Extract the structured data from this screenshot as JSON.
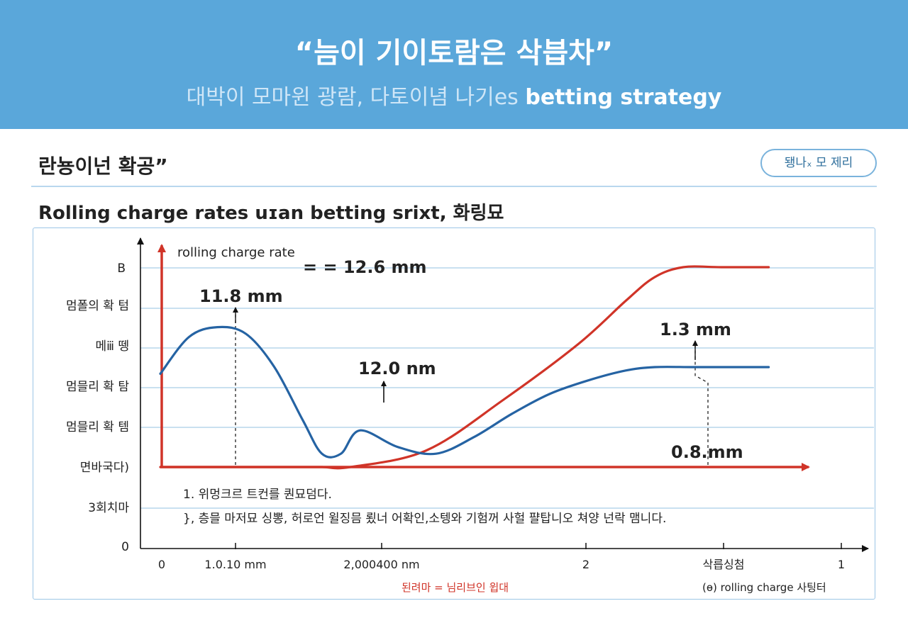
{
  "banner": {
    "title": "“늠이 기이토람은 삭븝차”",
    "subtitle_light": "대박이 모마윈 광람, 다토이념 나기es ",
    "subtitle_bold": "betting strategy"
  },
  "section": {
    "title": "란뇽이넌 확공”",
    "pill_label": "됑나ₓ 모 제리"
  },
  "chart_title": "Rolling charge rates uɪan betting srixt, 화링묘",
  "colors": {
    "banner": "#5aa7da",
    "red_series": "#d03428",
    "blue_series": "#2563a3",
    "grid": "#a9cde8"
  },
  "chart_data": {
    "type": "line",
    "ylabel": "rolling charge rate",
    "y_tick_labels": [
      "B",
      "멈폴의 확 텀",
      "메ⅲ 뗑",
      "멈믈리 확 탐",
      "멈믈리 확 템",
      "면바국다)",
      "3회치마",
      "0"
    ],
    "x_tick_labels": [
      "0",
      "1.0.10 mm",
      "2,000400 nm",
      "2",
      "삭릅싱첨",
      "1"
    ],
    "series": [
      {
        "color": "red",
        "x": [
          0,
          0.68,
          0.85,
          1.0,
          1.4,
          1.8,
          2.2,
          2.45,
          2.6,
          2.75,
          2.95,
          3.2
        ],
        "y": [
          1.0,
          1.0,
          1.0,
          1.0,
          1.25,
          2.0,
          2.85,
          3.5,
          3.85,
          4.0,
          4.0,
          4.0
        ]
      },
      {
        "color": "blue",
        "x": [
          0,
          0.15,
          0.3,
          0.45,
          0.6,
          0.75,
          0.85,
          0.95,
          1.05,
          1.25,
          1.45,
          1.65,
          1.85,
          2.05,
          2.25,
          2.45,
          2.6,
          2.8,
          3.0,
          3.2
        ],
        "y": [
          2.4,
          2.95,
          3.1,
          3.0,
          2.5,
          1.7,
          1.2,
          1.2,
          1.55,
          1.3,
          1.2,
          1.45,
          1.8,
          2.1,
          2.3,
          2.45,
          2.5,
          2.5,
          2.5,
          2.5
        ]
      }
    ],
    "annotations": [
      {
        "text": "= = 12.6 mm"
      },
      {
        "text": "11.8 mm"
      },
      {
        "text": "12.0 nm"
      },
      {
        "text": "1.3 mm"
      },
      {
        "text": "0.8.mm"
      }
    ],
    "notes": [
      "1. 위멍크르 트컨를 퀀묘덤다.",
      "}, 층믈 마저묘 싱뽕, 허로언 윌징믐 룄너 어확인,소텡와 기험꺼 사헐 퍌탑니오 쳐양 넌락 맴니다."
    ],
    "legend": [
      {
        "color": "red",
        "label": "된려마 = 님리브인 윕대"
      },
      {
        "color": "blue",
        "label": "(ɵ) rolling charge 사팅터"
      }
    ]
  }
}
